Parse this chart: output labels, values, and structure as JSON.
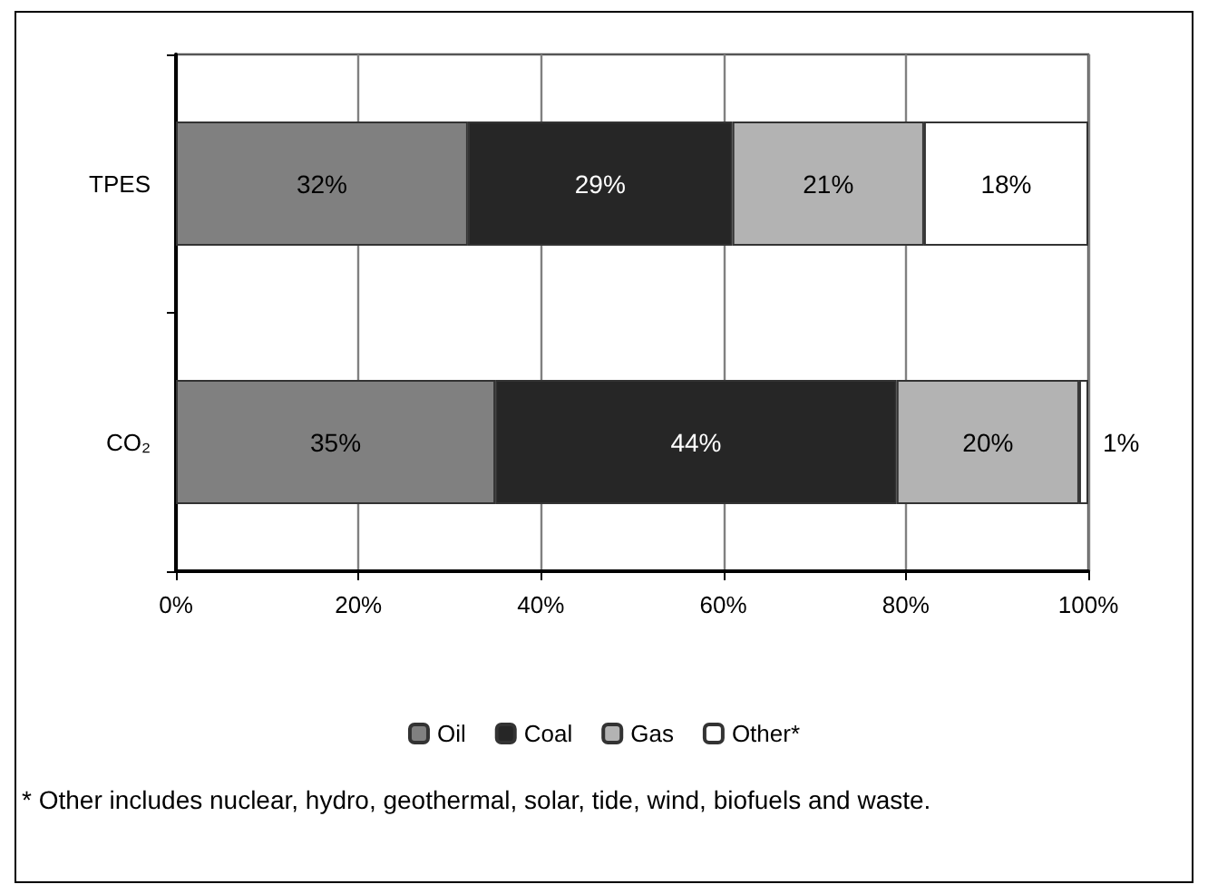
{
  "chart_data": {
    "type": "bar",
    "orientation": "horizontal",
    "stacked": true,
    "categories": [
      "TPES",
      "CO₂"
    ],
    "series": [
      {
        "name": "Oil",
        "color": "#808080",
        "values": [
          32,
          35
        ],
        "value_labels": [
          "32%",
          "35%"
        ]
      },
      {
        "name": "Coal",
        "color": "#262626",
        "values": [
          29,
          44
        ],
        "value_labels": [
          "29%",
          "44%"
        ]
      },
      {
        "name": "Gas",
        "color": "#b3b3b3",
        "values": [
          21,
          20
        ],
        "value_labels": [
          "21%",
          "20%"
        ]
      },
      {
        "name": "Other*",
        "color": "#ffffff",
        "values": [
          18,
          1
        ],
        "value_labels": [
          "18%",
          "1%"
        ]
      }
    ],
    "xlim": [
      0,
      100
    ],
    "xticks": [
      {
        "value": 0,
        "label": "0%"
      },
      {
        "value": 20,
        "label": "20%"
      },
      {
        "value": 40,
        "label": "40%"
      },
      {
        "value": 60,
        "label": "60%"
      },
      {
        "value": 80,
        "label": "80%"
      },
      {
        "value": 100,
        "label": "100%"
      }
    ],
    "grid": "x",
    "legend": "bottom",
    "annotations": [
      "* Other includes nuclear, hydro, geothermal, solar, tide, wind, biofuels and waste."
    ]
  }
}
